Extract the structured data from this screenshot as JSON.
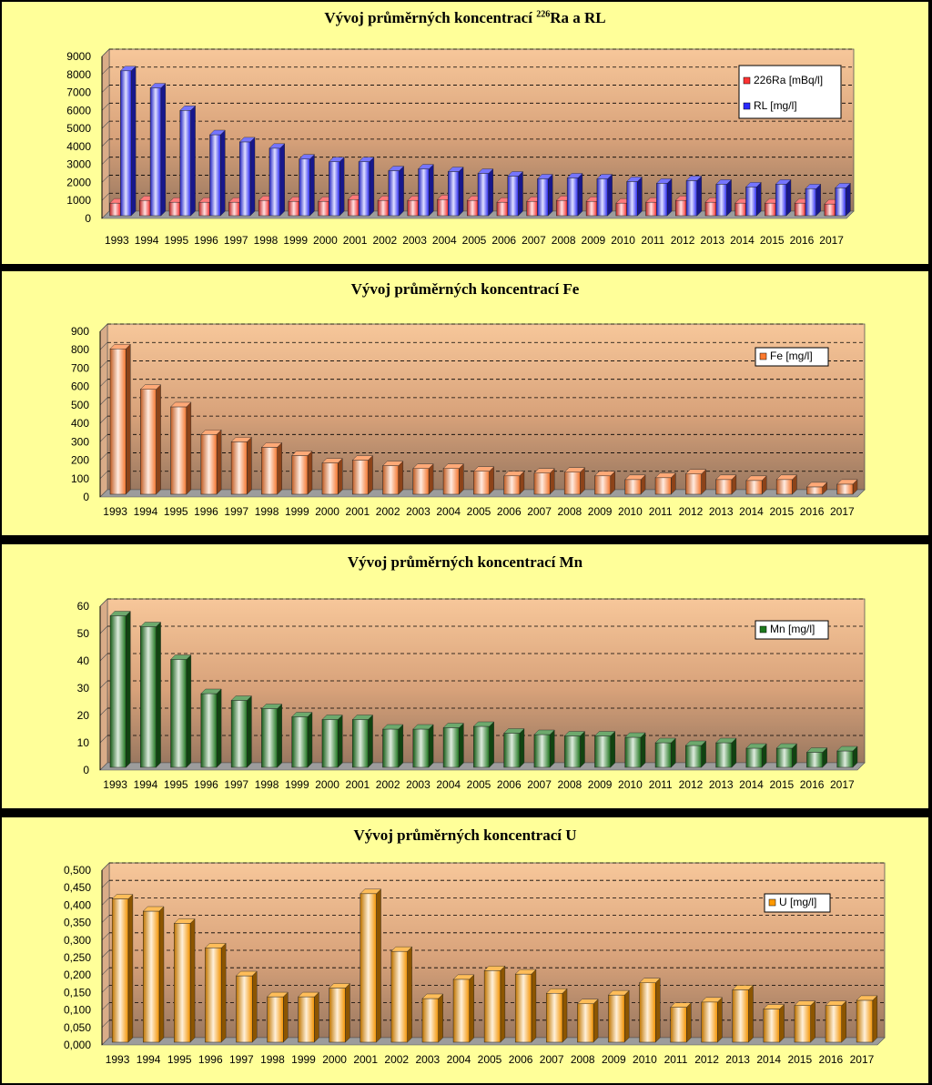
{
  "chart_data": [
    {
      "type": "bar",
      "title_prefix": "Vývoj průměrných koncentrací ",
      "title_sup": "226",
      "title_suffix": "Ra a RL",
      "categories": [
        "1993",
        "1994",
        "1995",
        "1996",
        "1997",
        "1998",
        "1999",
        "2000",
        "2001",
        "2002",
        "2003",
        "2004",
        "2005",
        "2006",
        "2007",
        "2008",
        "2009",
        "2010",
        "2011",
        "2012",
        "2013",
        "2014",
        "2015",
        "2016",
        "2017"
      ],
      "series": [
        {
          "name": "226Ra [mBq/l]",
          "color": "#ff3333",
          "values": [
            700,
            850,
            750,
            750,
            750,
            850,
            800,
            800,
            900,
            850,
            850,
            900,
            850,
            750,
            800,
            850,
            800,
            700,
            750,
            850,
            750,
            700,
            700,
            700,
            650
          ]
        },
        {
          "name": "RL [mg/l]",
          "color": "#2a2aff",
          "values": [
            8050,
            7100,
            5850,
            4500,
            4100,
            3750,
            3150,
            3000,
            3000,
            2500,
            2600,
            2450,
            2350,
            2200,
            2050,
            2100,
            2050,
            1900,
            1800,
            1950,
            1750,
            1600,
            1750,
            1500,
            1550
          ]
        }
      ],
      "yticks": [
        "0",
        "1000",
        "2000",
        "3000",
        "4000",
        "5000",
        "6000",
        "7000",
        "8000",
        "9000"
      ],
      "ylim": [
        0,
        9000
      ],
      "legend_position": "top-right",
      "grid": true
    },
    {
      "type": "bar",
      "title_prefix": "Vývoj průměrných koncentrací Fe",
      "title_sup": "",
      "title_suffix": "",
      "categories": [
        "1993",
        "1994",
        "1995",
        "1996",
        "1997",
        "1998",
        "1999",
        "2000",
        "2001",
        "2002",
        "2003",
        "2004",
        "2005",
        "2006",
        "2007",
        "2008",
        "2009",
        "2010",
        "2011",
        "2012",
        "2013",
        "2014",
        "2015",
        "2016",
        "2017"
      ],
      "series": [
        {
          "name": "Fe [mg/l]",
          "color": "#ff7a2e",
          "values": [
            790,
            570,
            475,
            325,
            285,
            255,
            210,
            170,
            185,
            155,
            140,
            140,
            125,
            100,
            115,
            120,
            100,
            80,
            90,
            110,
            80,
            75,
            80,
            40,
            55
          ]
        }
      ],
      "yticks": [
        "0",
        "100",
        "200",
        "300",
        "400",
        "500",
        "600",
        "700",
        "800",
        "900"
      ],
      "ylim": [
        0,
        900
      ],
      "legend_position": "top-right",
      "grid": true
    },
    {
      "type": "bar",
      "title_prefix": "Vývoj průměrných koncentrací Mn",
      "title_sup": "",
      "title_suffix": "",
      "categories": [
        "1993",
        "1994",
        "1995",
        "1996",
        "1997",
        "1998",
        "1999",
        "2000",
        "2001",
        "2002",
        "2003",
        "2004",
        "2005",
        "2006",
        "2007",
        "2008",
        "2009",
        "2010",
        "2011",
        "2012",
        "2013",
        "2014",
        "2015",
        "2016",
        "2017"
      ],
      "series": [
        {
          "name": "Mn [mg/l]",
          "color": "#1e7a1e",
          "values": [
            55.5,
            51.5,
            39.5,
            27,
            24.5,
            21.5,
            18.5,
            17.5,
            17.5,
            14,
            14,
            14.5,
            15,
            12.5,
            12,
            11.5,
            11.5,
            11,
            9,
            8,
            9,
            7,
            7,
            5.5,
            6
          ]
        }
      ],
      "yticks": [
        "0",
        "10",
        "20",
        "30",
        "40",
        "50",
        "60"
      ],
      "ylim": [
        0,
        60
      ],
      "legend_position": "top-right",
      "grid": true
    },
    {
      "type": "bar",
      "title_prefix": "Vývoj průměrných koncentrací U",
      "title_sup": "",
      "title_suffix": "",
      "categories": [
        "1993",
        "1994",
        "1995",
        "1996",
        "1997",
        "1998",
        "1999",
        "2000",
        "2001",
        "2002",
        "2003",
        "2004",
        "2005",
        "2006",
        "2007",
        "2008",
        "2009",
        "2010",
        "2011",
        "2012",
        "2013",
        "2014",
        "2015",
        "2016",
        "2017"
      ],
      "series": [
        {
          "name": "U [mg/l]",
          "color": "#ff9a00",
          "values": [
            0.41,
            0.375,
            0.34,
            0.27,
            0.19,
            0.13,
            0.13,
            0.155,
            0.425,
            0.26,
            0.125,
            0.18,
            0.205,
            0.195,
            0.14,
            0.11,
            0.135,
            0.17,
            0.1,
            0.115,
            0.15,
            0.095,
            0.105,
            0.105,
            0.12
          ]
        }
      ],
      "yticks": [
        "0,000",
        "0,050",
        "0,100",
        "0,150",
        "0,200",
        "0,250",
        "0,300",
        "0,350",
        "0,400",
        "0,450",
        "0,500"
      ],
      "ylim": [
        0,
        0.5
      ],
      "legend_position": "top-right",
      "grid": true
    }
  ]
}
